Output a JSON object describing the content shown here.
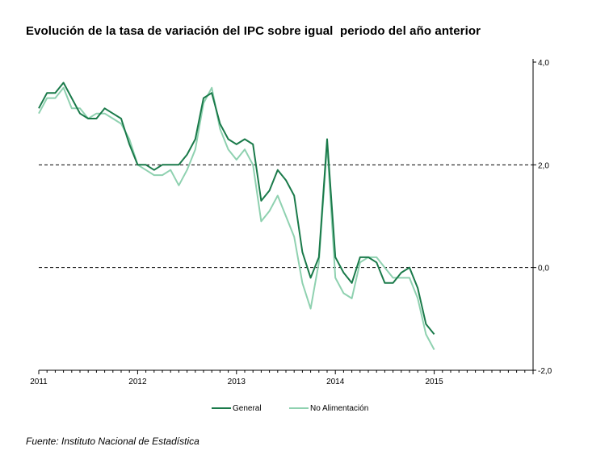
{
  "title": "Evolución de la tasa de variación del IPC sobre igual  periodo del año anterior",
  "source": "Fuente: Instituto Nacional de Estadística",
  "chart_data": {
    "type": "line",
    "title": "Evolución de la tasa de variación del IPC sobre igual  periodo del año anterior",
    "ylim": [
      -2.0,
      4.0
    ],
    "xlim": [
      2011.0,
      2016.0
    ],
    "y_ticks": [
      {
        "value": 4.0,
        "label": "4,0"
      },
      {
        "value": 2.0,
        "label": "2,0"
      },
      {
        "value": 0.0,
        "label": "0,0"
      },
      {
        "value": -2.0,
        "label": "-2,0"
      }
    ],
    "x_ticks": [
      "2011",
      "2012",
      "2013",
      "2014",
      "2015"
    ],
    "reference_lines": [
      2.0,
      0.0
    ],
    "legend_position": "bottom",
    "series": [
      {
        "name": "General",
        "color": "#1a7a4a",
        "values": [
          3.1,
          3.4,
          3.4,
          3.6,
          3.3,
          3.0,
          2.9,
          2.9,
          3.1,
          3.0,
          2.9,
          2.4,
          2.0,
          2.0,
          1.9,
          2.0,
          2.0,
          2.0,
          2.2,
          2.5,
          3.3,
          3.4,
          2.8,
          2.5,
          2.4,
          2.5,
          2.4,
          1.3,
          1.5,
          1.9,
          1.7,
          1.4,
          0.3,
          -0.2,
          0.2,
          2.5,
          0.2,
          -0.1,
          -0.3,
          0.2,
          0.2,
          0.1,
          -0.3,
          -0.3,
          -0.1,
          0.0,
          -0.4,
          -1.1,
          -1.3
        ]
      },
      {
        "name": "No Alimentación",
        "color": "#8fd1b0",
        "values": [
          3.0,
          3.3,
          3.3,
          3.5,
          3.1,
          3.1,
          2.9,
          3.0,
          3.0,
          2.9,
          2.8,
          2.5,
          2.0,
          1.9,
          1.8,
          1.8,
          1.9,
          1.6,
          1.9,
          2.3,
          3.2,
          3.5,
          2.7,
          2.3,
          2.1,
          2.3,
          2.0,
          0.9,
          1.1,
          1.4,
          1.0,
          0.6,
          -0.3,
          -0.8,
          0.1,
          2.4,
          -0.2,
          -0.5,
          -0.6,
          0.1,
          0.2,
          0.2,
          0.0,
          -0.2,
          -0.2,
          -0.2,
          -0.6,
          -1.3,
          -1.6
        ]
      }
    ]
  }
}
